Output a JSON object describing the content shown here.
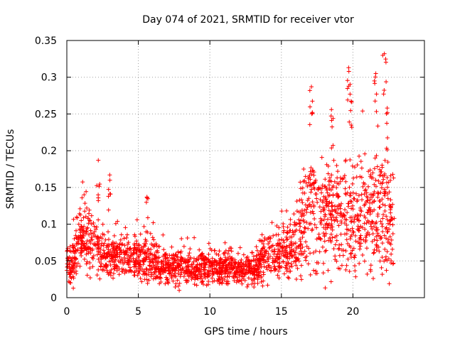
{
  "chart_data": {
    "type": "scatter",
    "title": "Day 074 of 2021, SRMTID for receiver vtor",
    "xlabel": "GPS time / hours",
    "ylabel": "SRMTID / TECUs",
    "xlim": [
      0,
      25
    ],
    "ylim": [
      0,
      0.35
    ],
    "xticks": [
      0,
      5,
      10,
      15,
      20
    ],
    "xtick_labels": [
      "0",
      "5",
      "10",
      "15",
      "20"
    ],
    "yticks": [
      0,
      0.05,
      0.1,
      0.15,
      0.2,
      0.25,
      0.3,
      0.35
    ],
    "ytick_labels": [
      "0",
      "0.05",
      "0.1",
      "0.15",
      "0.2",
      "0.25",
      "0.3",
      "0.35"
    ],
    "grid": true,
    "marker": "+",
    "series": [
      {
        "name": "SRMTID",
        "color": "#ff0000",
        "x_range": [
          0,
          22.9
        ],
        "trend_profile": [
          [
            0.0,
            0.045
          ],
          [
            0.5,
            0.05
          ],
          [
            1.0,
            0.085
          ],
          [
            1.5,
            0.08
          ],
          [
            2.0,
            0.065
          ],
          [
            3.0,
            0.055
          ],
          [
            4.0,
            0.058
          ],
          [
            5.0,
            0.05
          ],
          [
            6.0,
            0.048
          ],
          [
            7.0,
            0.042
          ],
          [
            8.0,
            0.042
          ],
          [
            9.0,
            0.04
          ],
          [
            10.0,
            0.043
          ],
          [
            11.0,
            0.042
          ],
          [
            12.0,
            0.038
          ],
          [
            13.0,
            0.035
          ],
          [
            14.0,
            0.06
          ],
          [
            15.0,
            0.06
          ],
          [
            16.0,
            0.075
          ],
          [
            17.0,
            0.12
          ],
          [
            18.0,
            0.11
          ],
          [
            19.0,
            0.11
          ],
          [
            20.0,
            0.115
          ],
          [
            21.0,
            0.115
          ],
          [
            22.0,
            0.12
          ],
          [
            22.9,
            0.09
          ]
        ],
        "notable_peaks": [
          {
            "x": 2.2,
            "y": 0.187
          },
          {
            "x": 3.0,
            "y": 0.167
          },
          {
            "x": 5.6,
            "y": 0.137
          },
          {
            "x": 17.1,
            "y": 0.287
          },
          {
            "x": 18.5,
            "y": 0.256
          },
          {
            "x": 19.7,
            "y": 0.313
          },
          {
            "x": 19.8,
            "y": 0.277
          },
          {
            "x": 21.6,
            "y": 0.305
          },
          {
            "x": 22.2,
            "y": 0.332
          },
          {
            "x": 22.4,
            "y": 0.258
          }
        ]
      }
    ]
  }
}
